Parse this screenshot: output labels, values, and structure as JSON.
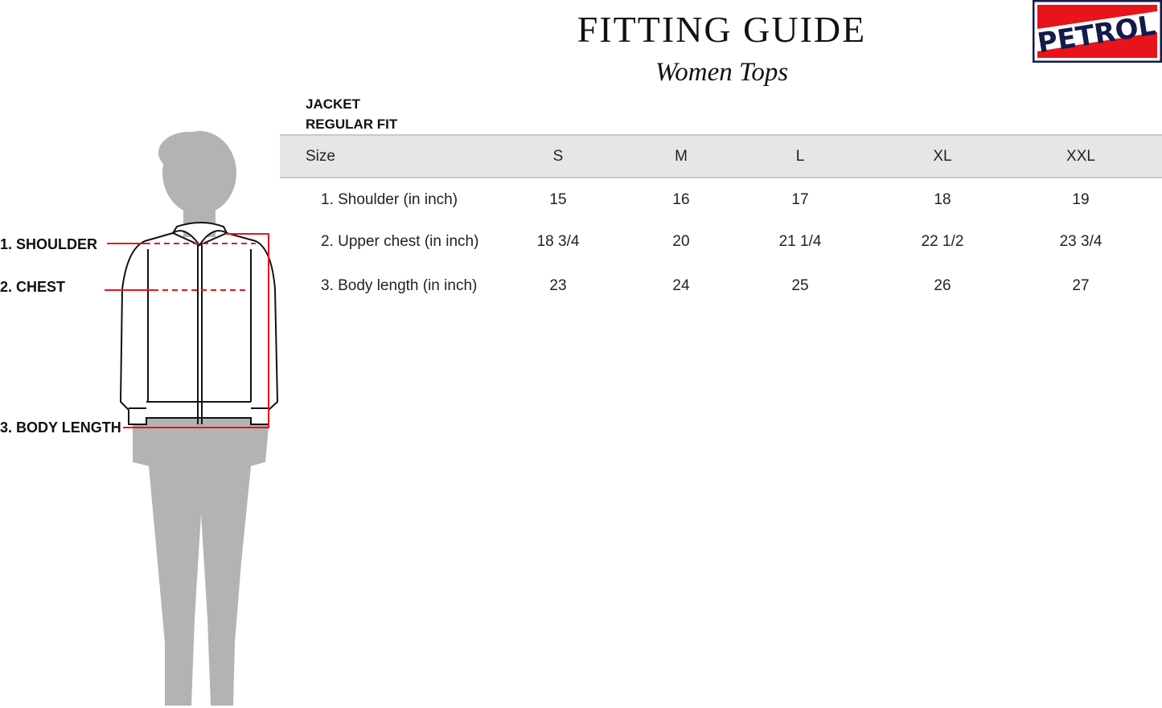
{
  "header": {
    "title": "FITTING GUIDE",
    "subtitle": "Women Tops"
  },
  "logo": {
    "text": "PETROL",
    "colors": {
      "red": "#e8141b",
      "navy": "#141a4a"
    }
  },
  "product": {
    "type": "JACKET",
    "fit": "REGULAR FIT"
  },
  "table": {
    "columns": [
      "Size",
      "S",
      "M",
      "L",
      "XL",
      "XXL"
    ],
    "rows": [
      {
        "label": "1. Shoulder (in inch)",
        "values": [
          "15",
          "16",
          "17",
          "18",
          "19"
        ]
      },
      {
        "label": "2. Upper chest (in inch)",
        "values": [
          "18 3/4",
          "20",
          "21 1/4",
          "22 1/2",
          "23 3/4"
        ]
      },
      {
        "label": "3. Body length (in inch)",
        "values": [
          "23",
          "24",
          "25",
          "26",
          "27"
        ]
      }
    ]
  },
  "figure": {
    "labels": [
      "1. SHOULDER",
      "2. CHEST",
      "3. BODY LENGTH"
    ],
    "colors": {
      "silhouette": "#b3b3b3",
      "measure_line": "#e8141b"
    }
  }
}
